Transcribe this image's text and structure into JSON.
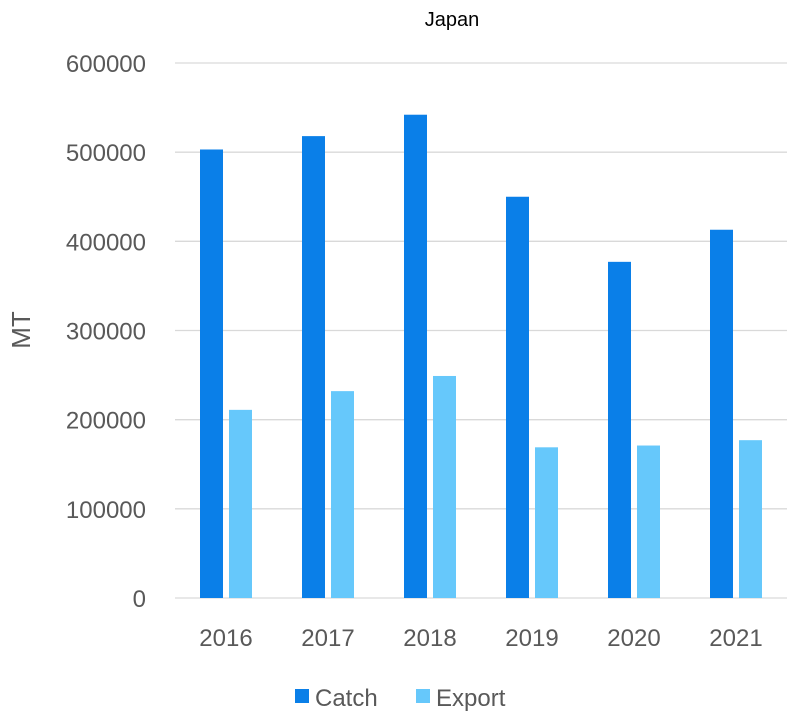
{
  "chart_data": {
    "type": "bar",
    "title": "Japan",
    "xlabel": "",
    "ylabel": "MT",
    "categories": [
      "2016",
      "2017",
      "2018",
      "2019",
      "2020",
      "2021"
    ],
    "series": [
      {
        "name": "Catch",
        "color": "#0a7fe8",
        "values": [
          503000,
          518000,
          542000,
          450000,
          377000,
          413000
        ]
      },
      {
        "name": "Export",
        "color": "#66c8fb",
        "values": [
          211000,
          232000,
          249000,
          169000,
          171000,
          177000
        ]
      }
    ],
    "ylim": [
      0,
      600000
    ],
    "yticks": [
      0,
      100000,
      200000,
      300000,
      400000,
      500000,
      600000
    ],
    "ytick_labels": [
      "0",
      "100000",
      "200000",
      "300000",
      "400000",
      "500000",
      "600000"
    ],
    "grid": true,
    "legend": "bottom"
  }
}
